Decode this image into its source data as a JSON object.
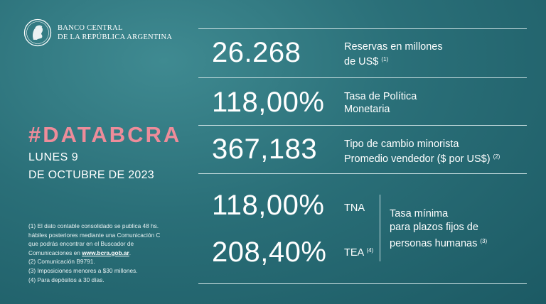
{
  "header": {
    "bank_line1": "BANCO CENTRAL",
    "bank_line2": "DE LA REPÚBLICA ARGENTINA"
  },
  "hashtag": "#DATABCRA",
  "date": {
    "line1": "LUNES 9",
    "line2": "DE OCTUBRE DE 2023"
  },
  "notes": {
    "n1_line1": "(1) El dato contable consolidado se publica 48 hs.",
    "n1_line2": "hábiles posteriores mediante una Comunicación C",
    "n1_line3": "que podrás encontrar en el Buscador de",
    "n1_line4_prefix": "Comunicaciones en ",
    "n1_link": "www.bcra.gob.ar",
    "n1_line4_suffix": ".",
    "n2": "(2) Comunicación B9791.",
    "n3": "(3) Imposiciones menores a $30 millones.",
    "n4": "(4) Para depósitos a 30 días."
  },
  "metrics": {
    "reservas": {
      "value": "26.268",
      "label1": "Reservas en millones",
      "label2": "de US$",
      "note": "(1)"
    },
    "tasa_politica": {
      "value": "118,00%",
      "label1": "Tasa de Política",
      "label2": "Monetaria"
    },
    "tipo_cambio": {
      "value": "367,183",
      "label1": "Tipo de cambio minorista",
      "label2": "Promedio vendedor ($ por US$)",
      "note": "(2)"
    },
    "tna": {
      "value": "118,00%",
      "tag": "TNA"
    },
    "tea": {
      "value": "208,40%",
      "tag": "TEA",
      "note": "(4)"
    },
    "plazo_fijo": {
      "line1": "Tasa mínima",
      "line2": "para plazos fijos de",
      "line3": "personas humanas",
      "note": "(3)"
    }
  }
}
